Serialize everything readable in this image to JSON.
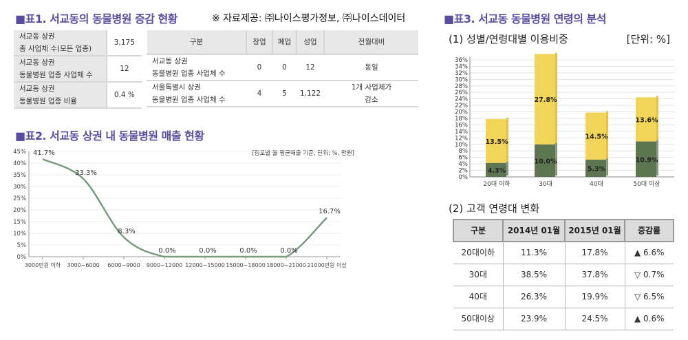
{
  "table1": {
    "title": "■표1. 서교동의 동물병원 증감 현황",
    "source_note": "※ 자료제공: ㈜나이스평가정보, ㈜나이스데이터",
    "summary_rows": [
      {
        "label1": "서교동 상권",
        "label2": "총 사업체 수(모든 업종)",
        "value": "3,175"
      },
      {
        "label1": "서교동 상권",
        "label2": "동물병원 업종 사업체 수",
        "value": "12"
      },
      {
        "label1": "서교동 상권",
        "label2": "동물병원 업종 비율",
        "value": "0.4 %"
      }
    ],
    "detail_headers": [
      "구분",
      "창업",
      "폐업",
      "성업",
      "전월대비"
    ],
    "detail_rows": [
      {
        "label1": "서교동 상권",
        "label2": "동물병원 업종 사업체 수",
        "open": "0",
        "closed": "0",
        "active": "12",
        "change1": "동일",
        "change2": ""
      },
      {
        "label1": "서울특별시 상권",
        "label2": "동물병원 업종 사업체 수",
        "open": "4",
        "closed": "5",
        "active": "1,122",
        "change1": "1개 사업체가",
        "change2": "감소"
      }
    ]
  },
  "chart_data": [
    {
      "type": "line",
      "title": "■표2. 서교동 상권 내 동물병원 매출 현황",
      "note": "[점포별 월 평균매출 기준, 단위: %, 만원]",
      "categories": [
        "3000만원 이하",
        "3000~6000",
        "6000~9000",
        "9000~12000",
        "12000~15000",
        "15000~18000",
        "18000~21000",
        "21000만원 이상"
      ],
      "values": [
        41.7,
        33.3,
        8.3,
        0.0,
        0.0,
        0.0,
        0.0,
        16.7
      ],
      "data_labels": [
        "41.7%",
        "33.3%",
        "8.3%",
        "0.0%",
        "0.0%",
        "0.0%",
        "0.0%",
        "16.7%"
      ],
      "yticks": [
        "0%",
        "5%",
        "10%",
        "15%",
        "20%",
        "25%",
        "30%",
        "35%",
        "40%",
        "45%"
      ],
      "ylim": [
        0,
        45
      ],
      "color": "#7a9a7e"
    },
    {
      "type": "bar",
      "stacked": true,
      "title": "(1) 성별/연령대별 이용비중",
      "unit": "[단위: %]",
      "categories": [
        "20대 이하",
        "30대",
        "40대",
        "50대 이상"
      ],
      "series": [
        {
          "name": "lower",
          "values": [
            4.3,
            10.0,
            5.3,
            10.9
          ],
          "labels": [
            "4.3%",
            "10.0%",
            "5.3%",
            "10.9%"
          ],
          "color": "#5e7552"
        },
        {
          "name": "upper",
          "values": [
            13.5,
            27.8,
            14.5,
            13.6
          ],
          "labels": [
            "13.5%",
            "27.8%",
            "14.5%",
            "13.6%"
          ],
          "color": "#f1d45a"
        }
      ],
      "yticks": [
        "0%",
        "2%",
        "4%",
        "6%",
        "8%",
        "10%",
        "12%",
        "14%",
        "16%",
        "18%",
        "20%",
        "22%",
        "24%",
        "26%",
        "28%",
        "30%",
        "32%",
        "34%",
        "36%"
      ],
      "ylim": [
        0,
        36
      ]
    }
  ],
  "section3": {
    "title": "■표3. 서교동 동물병원 연령의 분석",
    "table_title": "(2) 고객 연령대 변화",
    "headers": [
      "구분",
      "2014년 01월",
      "2015년 01월",
      "증감률"
    ],
    "rows": [
      {
        "age": "20대이하",
        "y2014": "11.3%",
        "y2015": "17.8%",
        "change": "▲ 6.6%"
      },
      {
        "age": "30대",
        "y2014": "38.5%",
        "y2015": "37.8%",
        "change": "▽ 0.7%"
      },
      {
        "age": "40대",
        "y2014": "26.3%",
        "y2015": "19.9%",
        "change": "▽ 6.5%"
      },
      {
        "age": "50대이상",
        "y2014": "23.9%",
        "y2015": "24.5%",
        "change": "▲ 0.6%"
      }
    ]
  }
}
